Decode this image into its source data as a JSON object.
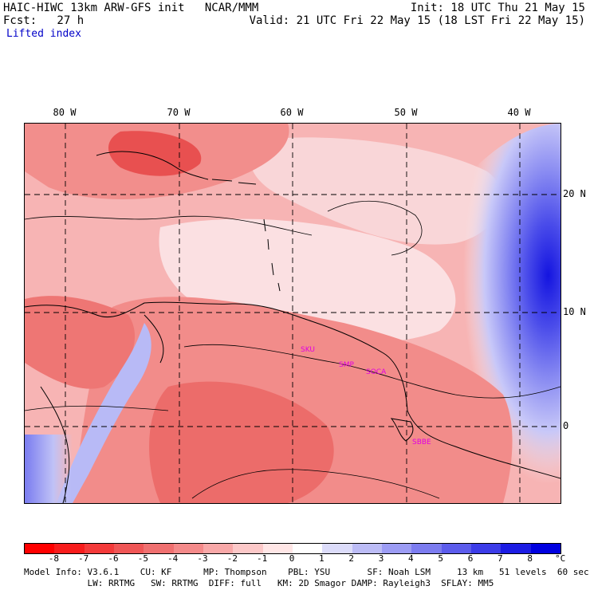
{
  "header": {
    "line1_left": "HAIC-HIWC 13km ARW-GFS init   NCAR/MMM",
    "line1_right": "Init: 18 UTC Thu 21 May 15",
    "line2_left": "Fcst:   27 h",
    "line2_right": "Valid: 21 UTC Fri 22 May 15 (18 LST Fri 22 May 15)",
    "field_name": "Lifted index"
  },
  "map": {
    "longitude_labels": [
      "80 W",
      "70 W",
      "60 W",
      "50 W",
      "40 W"
    ],
    "latitude_labels": [
      "20 N",
      "10 N",
      "0"
    ],
    "station_labels": [
      "SKU",
      "SMP",
      "SOCA",
      "SBBE"
    ],
    "colors": {
      "warm_dark": "#e84646",
      "warm": "#f07a78",
      "neutral": "#fbe6e6",
      "cool": "#7a7cf0",
      "cool_dark": "#1616e6",
      "station": "#e000e0"
    }
  },
  "colorbar": {
    "tick_labels": [
      "-8",
      "-7",
      "-6",
      "-5",
      "-4",
      "-3",
      "-2",
      "-1",
      "0",
      "1",
      "2",
      "3",
      "4",
      "5",
      "6",
      "7",
      "8"
    ],
    "unit": "°C",
    "colors": [
      "#ff0000",
      "#f81c1c",
      "#f43a3a",
      "#f05656",
      "#f07070",
      "#f48a8a",
      "#f8a8a8",
      "#fcc8c8",
      "#ffe6e6",
      "#ffffff",
      "#dcdcfa",
      "#bcbcf6",
      "#9c9cf4",
      "#7c7cf0",
      "#5c5cec",
      "#3c3ce8",
      "#1c1ce4",
      "#0000e0"
    ]
  },
  "footer": {
    "line1": "Model Info: V3.6.1    CU: KF      MP: Thompson    PBL: YSU       SF: Noah LSM     13 km   51 levels  60 sec",
    "line2": "            LW: RRTMG   SW: RRTMG  DIFF: full   KM: 2D Smagor DAMP: Rayleigh3  SFLAY: MM5"
  }
}
